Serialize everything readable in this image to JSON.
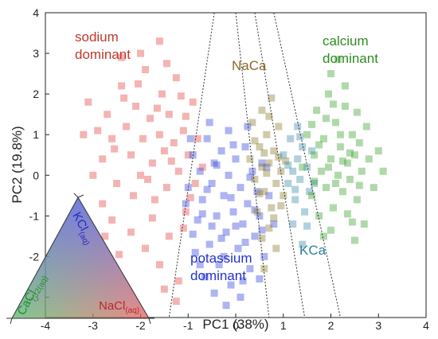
{
  "chart_data": {
    "type": "scatter",
    "xlabel": "PC1 (38%)",
    "ylabel": "PC2 (19.8%)",
    "xlim": [
      -4,
      4
    ],
    "ylim": [
      -3.5,
      4
    ],
    "xticks": [
      "-4",
      "-3",
      "-2",
      "-1",
      "0",
      "1",
      "2",
      "3",
      "4"
    ],
    "yticks": [
      "-3",
      "-2",
      "-1",
      "0",
      "1",
      "2",
      "3",
      "4"
    ],
    "series": [
      {
        "group": "sodium",
        "color": "#e0443f",
        "points": [
          [
            -3.1,
            1.8
          ],
          [
            -2.9,
            1.1
          ],
          [
            -2.8,
            0.4
          ],
          [
            -2.7,
            1.5
          ],
          [
            -2.6,
            0.9
          ],
          [
            -2.5,
            -0.2
          ],
          [
            -2.4,
            2.2
          ],
          [
            -2.3,
            1.2
          ],
          [
            -2.2,
            0.5
          ],
          [
            -2.1,
            1.7
          ],
          [
            -2.0,
            0.0
          ],
          [
            -1.95,
            0.9
          ],
          [
            -1.9,
            2.6
          ],
          [
            -1.8,
            1.4
          ],
          [
            -1.75,
            0.3
          ],
          [
            -1.7,
            -0.6
          ],
          [
            -1.6,
            1.0
          ],
          [
            -1.55,
            2.0
          ],
          [
            -1.5,
            0.6
          ],
          [
            -1.45,
            -0.3
          ],
          [
            -1.4,
            1.5
          ],
          [
            -1.3,
            0.8
          ],
          [
            -1.25,
            2.4
          ],
          [
            -1.2,
            0.1
          ],
          [
            -1.1,
            1.1
          ],
          [
            -1.05,
            -0.9
          ],
          [
            -1.0,
            0.5
          ],
          [
            -0.9,
            1.8
          ],
          [
            -0.85,
            -0.2
          ],
          [
            -0.8,
            0.9
          ],
          [
            -2.6,
            -1.1
          ],
          [
            -2.2,
            -1.4
          ],
          [
            -1.9,
            -1.8
          ],
          [
            -1.6,
            -2.2
          ],
          [
            -1.4,
            -1.5
          ],
          [
            -1.2,
            -2.6
          ],
          [
            -2.0,
            3.0
          ],
          [
            -1.6,
            3.3
          ],
          [
            -2.4,
            2.9
          ],
          [
            -1.1,
            -1.3
          ],
          [
            -3.0,
            0.0
          ],
          [
            -2.8,
            -0.7
          ],
          [
            -2.35,
            1.9
          ],
          [
            -1.85,
            -0.1
          ],
          [
            -1.35,
            0.35
          ],
          [
            -2.15,
            -0.5
          ],
          [
            -1.65,
            1.65
          ],
          [
            -2.55,
            0.65
          ],
          [
            -1.05,
            1.45
          ],
          [
            -0.95,
            -0.55
          ],
          [
            -2.05,
            2.25
          ],
          [
            -1.75,
            -1.05
          ],
          [
            -1.45,
            2.75
          ],
          [
            -2.75,
            -1.5
          ],
          [
            -1.25,
            -3.1
          ],
          [
            -1.5,
            -2.8
          ],
          [
            -0.7,
            0.2
          ],
          [
            -2.45,
            -1.95
          ],
          [
            -3.2,
            1.0
          ],
          [
            -1.15,
            1.95
          ]
        ]
      },
      {
        "group": "potassium",
        "color": "#3344dd",
        "points": [
          [
            -1.0,
            -0.3
          ],
          [
            -0.9,
            0.5
          ],
          [
            -0.8,
            -1.1
          ],
          [
            -0.75,
            0.1
          ],
          [
            -0.7,
            -0.6
          ],
          [
            -0.6,
            0.9
          ],
          [
            -0.55,
            -1.7
          ],
          [
            -0.5,
            -0.2
          ],
          [
            -0.45,
            0.3
          ],
          [
            -0.4,
            -1.0
          ],
          [
            -0.35,
            -2.2
          ],
          [
            -0.3,
            0.6
          ],
          [
            -0.25,
            -0.5
          ],
          [
            -0.2,
            -1.4
          ],
          [
            -0.15,
            0.0
          ],
          [
            -0.1,
            -2.7
          ],
          [
            -0.05,
            -0.9
          ],
          [
            0.0,
            0.4
          ],
          [
            0.05,
            -1.8
          ],
          [
            0.1,
            -0.3
          ],
          [
            0.15,
            -1.2
          ],
          [
            0.2,
            0.7
          ],
          [
            0.25,
            -0.7
          ],
          [
            0.3,
            -2.3
          ],
          [
            0.35,
            0.1
          ],
          [
            0.4,
            -1.5
          ],
          [
            0.45,
            -0.4
          ],
          [
            0.5,
            -1.0
          ],
          [
            0.55,
            0.3
          ],
          [
            0.6,
            -2.0
          ],
          [
            -0.65,
            -2.5
          ],
          [
            -0.85,
            -1.9
          ],
          [
            -0.2,
            -3.2
          ],
          [
            0.15,
            -2.6
          ],
          [
            -0.55,
            1.3
          ],
          [
            -0.15,
            1.1
          ],
          [
            0.25,
            1.2
          ],
          [
            -0.95,
            0.9
          ],
          [
            -0.45,
            -2.9
          ],
          [
            0.7,
            -0.5
          ],
          [
            -0.3,
            -1.55
          ],
          [
            0.0,
            -1.25
          ],
          [
            -0.7,
            -0.95
          ],
          [
            0.4,
            -0.85
          ],
          [
            -0.05,
            0.75
          ],
          [
            -0.6,
            -0.35
          ],
          [
            0.5,
            -2.55
          ],
          [
            -0.25,
            -2.0
          ],
          [
            0.65,
            0.2
          ],
          [
            -0.9,
            -1.45
          ],
          [
            0.1,
            -3.0
          ],
          [
            -0.4,
            0.25
          ],
          [
            0.3,
            -0.05
          ],
          [
            -0.75,
            -2.2
          ],
          [
            0.2,
            -1.65
          ],
          [
            -0.1,
            -0.55
          ],
          [
            0.55,
            -1.35
          ],
          [
            -1.05,
            -0.7
          ],
          [
            0.8,
            -1.2
          ],
          [
            -0.5,
            -1.25
          ]
        ]
      },
      {
        "group": "nacagroup",
        "color": "#8a7a2c",
        "points": [
          [
            0.3,
            0.4
          ],
          [
            0.4,
            -0.1
          ],
          [
            0.5,
            0.7
          ],
          [
            0.55,
            0.2
          ],
          [
            0.6,
            -0.4
          ],
          [
            0.65,
            1.0
          ],
          [
            0.7,
            0.3
          ],
          [
            0.75,
            -0.8
          ],
          [
            0.8,
            0.6
          ],
          [
            0.85,
            -0.2
          ],
          [
            0.9,
            1.2
          ],
          [
            0.95,
            0.1
          ],
          [
            1.0,
            -0.5
          ],
          [
            0.45,
            -0.9
          ],
          [
            0.7,
            -1.3
          ],
          [
            0.85,
            -1.8
          ],
          [
            0.6,
            -2.3
          ],
          [
            0.35,
            1.3
          ],
          [
            0.55,
            1.6
          ],
          [
            0.75,
            1.9
          ],
          [
            0.5,
            -0.45
          ],
          [
            0.9,
            0.45
          ],
          [
            0.65,
            0.05
          ],
          [
            0.4,
            0.85
          ],
          [
            0.8,
            -1.05
          ],
          [
            0.95,
            -0.75
          ],
          [
            0.55,
            -1.55
          ],
          [
            0.7,
            1.45
          ],
          [
            1.05,
            0.35
          ],
          [
            0.6,
            0.55
          ]
        ]
      },
      {
        "group": "kca",
        "color": "#3a8aa8",
        "points": [
          [
            1.0,
            0.5
          ],
          [
            1.1,
            -0.2
          ],
          [
            1.15,
            0.9
          ],
          [
            1.2,
            0.1
          ],
          [
            1.25,
            -0.6
          ],
          [
            1.3,
            0.4
          ],
          [
            1.35,
            -0.1
          ],
          [
            1.4,
            0.7
          ],
          [
            1.45,
            -0.9
          ],
          [
            1.5,
            0.2
          ],
          [
            1.55,
            -0.4
          ],
          [
            1.6,
            0.6
          ],
          [
            1.2,
            -1.2
          ],
          [
            1.4,
            -1.7
          ],
          [
            1.3,
            1.2
          ],
          [
            1.65,
            -0.2
          ],
          [
            1.1,
            0.25
          ],
          [
            1.5,
            -1.25
          ],
          [
            1.35,
            0.95
          ],
          [
            1.25,
            -0.35
          ]
        ]
      },
      {
        "group": "calcium",
        "color": "#3aa02e",
        "points": [
          [
            1.4,
            0.2
          ],
          [
            1.5,
            1.0
          ],
          [
            1.6,
            -0.5
          ],
          [
            1.65,
            0.5
          ],
          [
            1.7,
            1.6
          ],
          [
            1.75,
            -1.0
          ],
          [
            1.8,
            0.1
          ],
          [
            1.85,
            0.9
          ],
          [
            1.9,
            -0.3
          ],
          [
            1.95,
            2.0
          ],
          [
            2.0,
            0.4
          ],
          [
            2.05,
            -0.8
          ],
          [
            2.1,
            1.3
          ],
          [
            2.15,
            0.0
          ],
          [
            2.2,
            0.7
          ],
          [
            2.25,
            -0.4
          ],
          [
            2.3,
            1.7
          ],
          [
            2.35,
            0.3
          ],
          [
            2.4,
            -0.1
          ],
          [
            2.45,
            1.0
          ],
          [
            2.5,
            0.5
          ],
          [
            2.55,
            -0.6
          ],
          [
            2.6,
            0.8
          ],
          [
            2.65,
            0.1
          ],
          [
            2.7,
            -1.2
          ],
          [
            2.8,
            0.4
          ],
          [
            2.9,
            -0.3
          ],
          [
            3.0,
            0.6
          ],
          [
            2.0,
            2.5
          ],
          [
            2.3,
            2.2
          ],
          [
            1.85,
            -1.5
          ],
          [
            2.5,
            -1.6
          ],
          [
            2.2,
            1.0
          ],
          [
            1.95,
            0.2
          ],
          [
            2.4,
            0.55
          ],
          [
            2.1,
            -0.2
          ],
          [
            1.75,
            0.75
          ],
          [
            2.6,
            -0.25
          ],
          [
            2.05,
            1.75
          ],
          [
            2.35,
            -0.95
          ],
          [
            1.65,
            -0.15
          ],
          [
            2.75,
            1.2
          ],
          [
            1.9,
            1.4
          ],
          [
            2.25,
            0.35
          ],
          [
            2.45,
            -1.15
          ],
          [
            2.15,
            2.85
          ],
          [
            1.6,
            1.25
          ],
          [
            3.1,
            0.1
          ],
          [
            2.55,
            1.55
          ],
          [
            2.0,
            -1.35
          ]
        ]
      }
    ],
    "boundaries": [
      [
        [
          -0.45,
          4.0
        ],
        [
          -1.4,
          -3.5
        ]
      ],
      [
        [
          0.0,
          4.0
        ],
        [
          0.7,
          -3.5
        ]
      ],
      [
        [
          0.4,
          4.0
        ],
        [
          1.45,
          -3.5
        ]
      ],
      [
        [
          0.8,
          4.0
        ],
        [
          2.2,
          -3.5
        ]
      ]
    ]
  },
  "labels": {
    "sodium": "sodium\ndominant",
    "calcium": "calcium\ndominant",
    "potassium": "potassium\ndominant",
    "naca": "NaCa",
    "kca": "KCa"
  },
  "ternary": {
    "kcl_main": "KCl",
    "kcl_sub": "(aq)",
    "cacl_main": "CaCl",
    "cacl_2": "2",
    "cacl_sub": "(aq)",
    "nacl_main": "NaCl",
    "nacl_sub": "(aq)"
  },
  "colors": {
    "sodium": "#c0392b",
    "potassium": "#2233cc",
    "naca": "#8a6a2a",
    "kca": "#2a7f9e",
    "calcium": "#2e8b22"
  }
}
